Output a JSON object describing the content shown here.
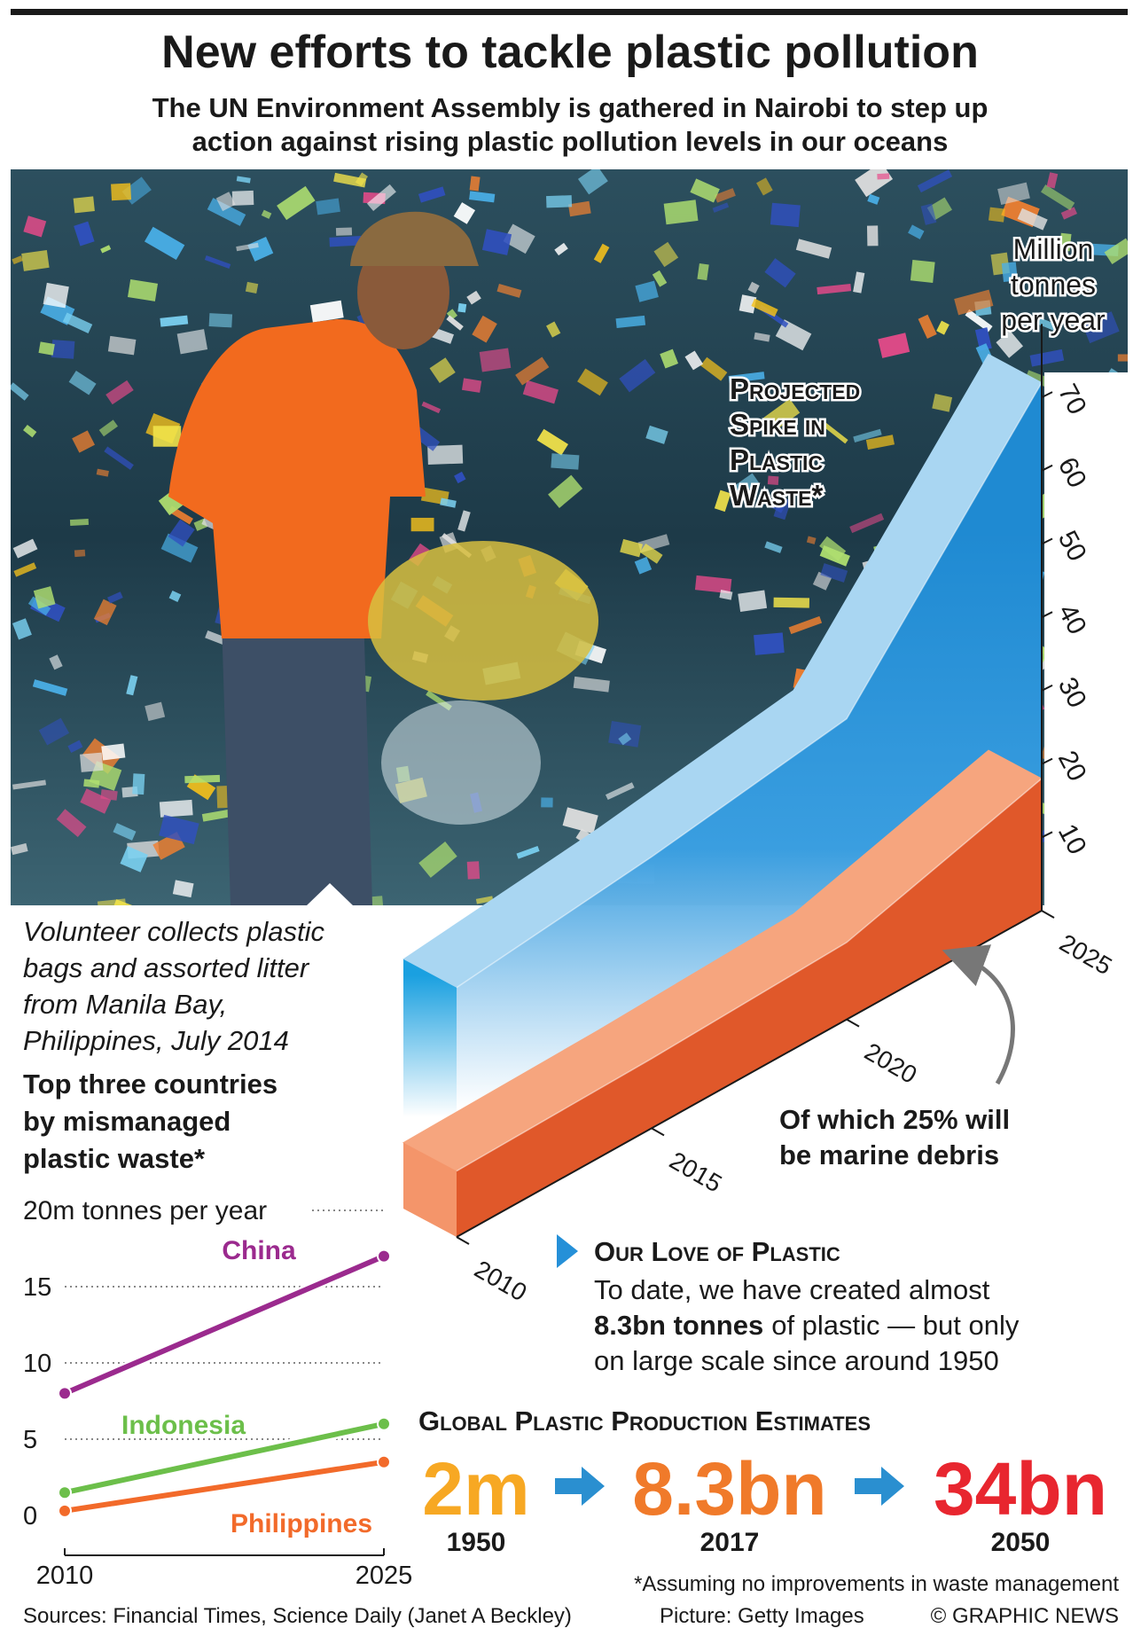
{
  "header": {
    "title": "New efforts to tackle plastic pollution",
    "subtitle": [
      "The UN Environment Assembly is gathered in Nairobi to step up",
      "action against rising plastic pollution levels in our oceans"
    ]
  },
  "caption": [
    "Volunteer collects plastic",
    "bags and assorted litter",
    "from Manila Bay,",
    "Philippines, July 2014"
  ],
  "chart_data": [
    {
      "type": "area3d",
      "axis_label": [
        "Million",
        "tonnes",
        "per year"
      ],
      "annotation": [
        "Projected",
        "Spike in",
        "Plastic",
        "Waste*"
      ],
      "annotation_2": [
        "Of which 25% will",
        "be marine debris"
      ],
      "x": [
        2010,
        2015,
        2020,
        2025
      ],
      "xlim": [
        2010,
        2025
      ],
      "xticks": [
        2010,
        2015,
        2020,
        2025
      ],
      "ylim": [
        0,
        80
      ],
      "yticks": [
        10,
        20,
        30,
        40,
        50,
        60,
        70
      ],
      "series": [
        {
          "color": "#2590d8",
          "values": [
            34,
            37,
            41,
            72
          ]
        },
        {
          "color": "#e0582a",
          "values": [
            9,
            9.5,
            10.5,
            18
          ]
        }
      ]
    },
    {
      "type": "line",
      "title": [
        "Top three countries",
        "by mismanaged",
        "plastic waste*"
      ],
      "x": [
        2010,
        2025
      ],
      "xlim": [
        2010,
        2025
      ],
      "xticks": [
        2010,
        2025
      ],
      "ylim": [
        0,
        20
      ],
      "yticks": [
        0,
        5,
        10,
        15,
        {
          "value": 20,
          "label": "20m tonnes per year"
        }
      ],
      "grid": true,
      "series": [
        {
          "name": "China",
          "color": "#9b2a8e",
          "values": [
            8,
            17
          ]
        },
        {
          "name": "Indonesia",
          "color": "#6cbf4a",
          "values": [
            1.5,
            6
          ]
        },
        {
          "name": "Philippines",
          "color": "#f26a2a",
          "values": [
            0.3,
            3.5
          ]
        }
      ]
    }
  ],
  "love": {
    "title": "Our Love of Plastic",
    "body": [
      "To date, we have created almost",
      "8.3bn tonnes",
      "of plastic — but only",
      "on large scale since around 1950"
    ]
  },
  "production": {
    "title": "Global Plastic Production Estimates",
    "items": [
      {
        "value": "2m",
        "year": "1950",
        "color": "#f7a823"
      },
      {
        "value": "8.3bn",
        "year": "2017",
        "color": "#f07a2a"
      },
      {
        "value": "34bn",
        "year": "2050",
        "color": "#e8262f"
      }
    ]
  },
  "note": "*Assuming no improvements in waste management",
  "sources": "Sources: Financial Times, Science Daily (Janet A Beckley)",
  "picture": "Picture: Getty Images",
  "credit": "© GRAPHIC NEWS"
}
